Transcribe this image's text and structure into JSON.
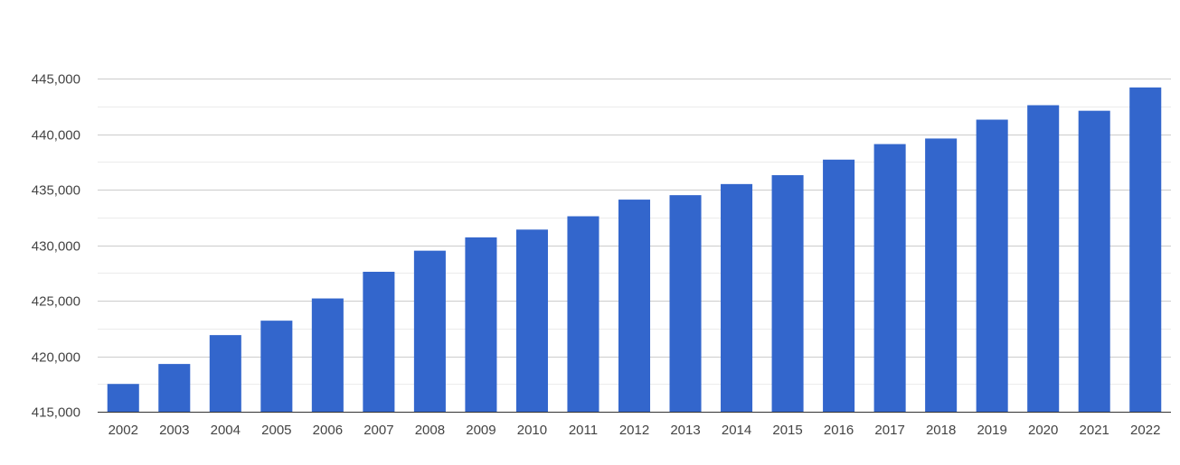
{
  "chart_data": {
    "type": "bar",
    "categories": [
      "2002",
      "2003",
      "2004",
      "2005",
      "2006",
      "2007",
      "2008",
      "2009",
      "2010",
      "2011",
      "2012",
      "2013",
      "2014",
      "2015",
      "2016",
      "2017",
      "2018",
      "2019",
      "2020",
      "2021",
      "2022"
    ],
    "values": [
      417500,
      419300,
      421900,
      423200,
      425200,
      427600,
      429500,
      430700,
      431400,
      432600,
      434100,
      434500,
      435500,
      436300,
      437700,
      439100,
      439600,
      441300,
      442600,
      442100,
      444200
    ],
    "ylim": [
      415000,
      445000
    ],
    "yticks": [
      415000,
      420000,
      425000,
      430000,
      435000,
      440000,
      445000
    ],
    "ytick_labels": [
      "415,000",
      "420,000",
      "425,000",
      "430,000",
      "435,000",
      "440,000",
      "445,000"
    ],
    "title": "",
    "xlabel": "",
    "ylabel": "",
    "grid": true,
    "minor_grid": true,
    "legend": "none",
    "colors": {
      "bar": "#3366cc",
      "major_grid": "#cccccc",
      "minor_grid": "#ebebeb",
      "axis": "#333333",
      "text": "#444444"
    }
  }
}
